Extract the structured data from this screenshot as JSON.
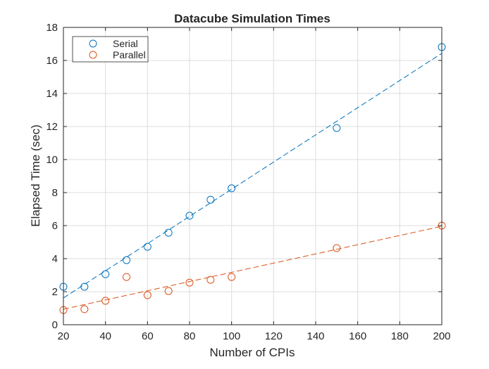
{
  "chart_data": {
    "type": "scatter",
    "title": "Datacube Simulation Times",
    "xlabel": "Number of CPIs",
    "ylabel": "Elapsed Time (sec)",
    "xlim": [
      20,
      200
    ],
    "ylim": [
      0,
      18
    ],
    "xticks": [
      20,
      40,
      60,
      80,
      100,
      120,
      140,
      160,
      180,
      200
    ],
    "yticks": [
      0,
      2,
      4,
      6,
      8,
      10,
      12,
      14,
      16,
      18
    ],
    "grid": true,
    "legend_position": "top-left",
    "x": [
      20,
      30,
      40,
      50,
      60,
      70,
      80,
      90,
      100,
      150,
      200
    ],
    "series": [
      {
        "name": "Serial",
        "color": "#0072BD",
        "marker": "circle",
        "values": [
          2.3,
          2.3,
          3.06,
          3.91,
          4.72,
          5.57,
          6.6,
          7.57,
          8.26,
          11.91,
          16.81
        ],
        "fit_line": {
          "x": [
            20,
            200
          ],
          "y": [
            1.62,
            16.43
          ],
          "style": "dashed"
        }
      },
      {
        "name": "Parallel",
        "color": "#D95319",
        "marker": "circle",
        "values": [
          0.89,
          0.94,
          1.45,
          2.89,
          1.79,
          2.04,
          2.55,
          2.72,
          2.89,
          4.64,
          6.0
        ],
        "fit_line": {
          "x": [
            20,
            200
          ],
          "y": [
            0.94,
            5.96
          ],
          "style": "dashed"
        }
      }
    ]
  }
}
